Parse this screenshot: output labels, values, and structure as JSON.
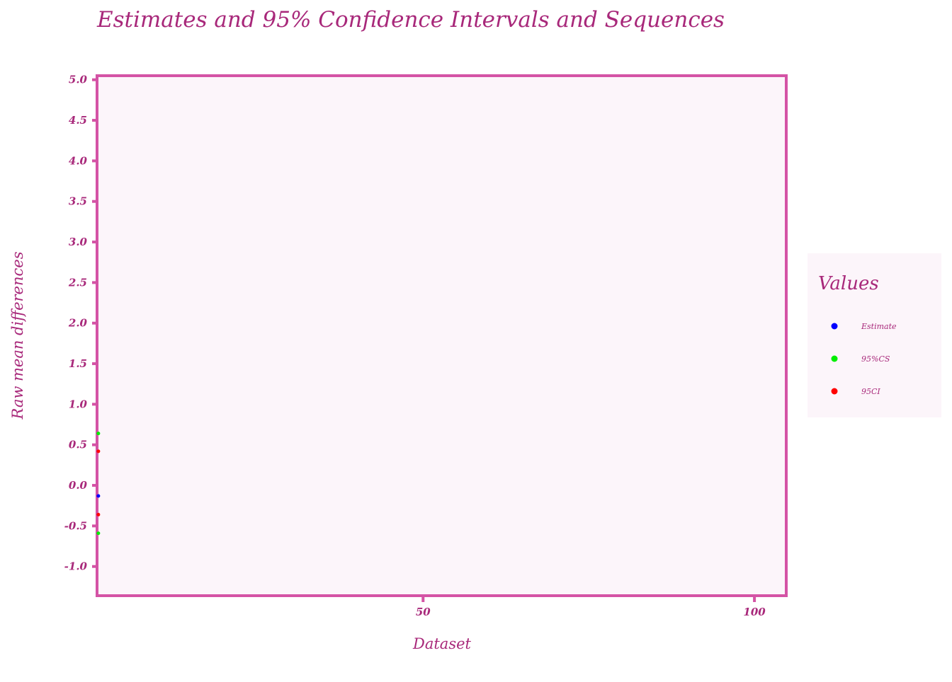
{
  "chart_data": {
    "type": "scatter",
    "title": "Estimates and 95% Confidence Intervals and Sequences",
    "x_label": "Dataset",
    "y_label": "Raw mean differences",
    "legend_title": "Values",
    "xlim": [
      0.8,
      104.8
    ],
    "ylim": [
      -1.36,
      5.05
    ],
    "xticks": [
      50,
      100
    ],
    "yticks": [
      {
        "value": 5,
        "label": "5.0"
      },
      {
        "value": 4.5,
        "label": "4.5"
      },
      {
        "value": 4,
        "label": "4.0"
      },
      {
        "value": 3.5,
        "label": "3.5"
      },
      {
        "value": 3,
        "label": "3.0"
      },
      {
        "value": 2.5,
        "label": "2.5"
      },
      {
        "value": 2,
        "label": "2.0"
      },
      {
        "value": 1.5,
        "label": "1.5"
      },
      {
        "value": 1,
        "label": "1.0"
      },
      {
        "value": 0.5,
        "label": "0.5"
      },
      {
        "value": 0,
        "label": "0.0"
      },
      {
        "value": -0.5,
        "label": "-0.5"
      },
      {
        "value": -1,
        "label": "-1.0"
      }
    ],
    "series": [
      {
        "name": "Estimate",
        "color": "#0000ff",
        "x": [
          1
        ],
        "values": [
          -0.13
        ]
      },
      {
        "name": "95%CS",
        "color": "#00ee00",
        "x": [
          1,
          1
        ],
        "values": [
          0.64,
          -0.59
        ]
      },
      {
        "name": "95CI",
        "color": "#ff0000",
        "x": [
          1,
          1
        ],
        "values": [
          0.42,
          -0.36
        ]
      }
    ]
  }
}
